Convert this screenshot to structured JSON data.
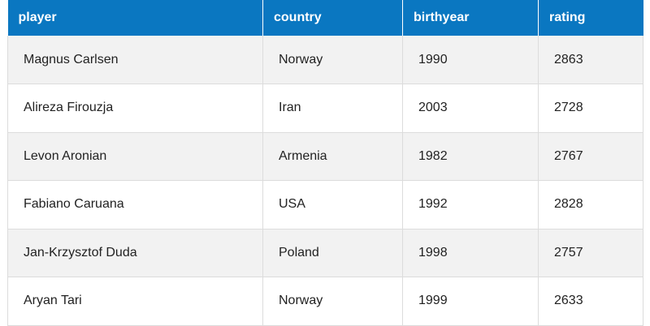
{
  "table": {
    "headers": [
      "player",
      "country",
      "birthyear",
      "rating"
    ],
    "rows": [
      [
        "Magnus Carlsen",
        "Norway",
        "1990",
        "2863"
      ],
      [
        "Alireza Firouzja",
        "Iran",
        "2003",
        "2728"
      ],
      [
        "Levon Aronian",
        "Armenia",
        "1982",
        "2767"
      ],
      [
        "Fabiano Caruana",
        "USA",
        "1992",
        "2828"
      ],
      [
        "Jan-Krzysztof Duda",
        "Poland",
        "1998",
        "2757"
      ],
      [
        "Aryan Tari",
        "Norway",
        "1999",
        "2633"
      ]
    ]
  },
  "colors": {
    "header_bg": "#0a77c1",
    "header_text": "#ffffff",
    "row_alt_bg": "#f2f2f2",
    "row_bg": "#ffffff"
  }
}
